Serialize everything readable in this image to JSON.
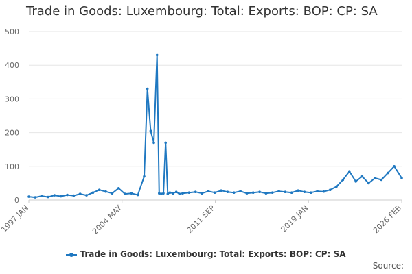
{
  "chart_data": {
    "type": "line",
    "title": "Trade in Goods: Luxembourg: Total: Exports: BOP: CP: SA",
    "xlabel": "",
    "ylabel": "",
    "ylim": [
      0,
      500
    ],
    "yticks": [
      "0",
      "100",
      "200",
      "300",
      "400",
      "500"
    ],
    "xticks": [
      "1997 JAN",
      "2004 MAY",
      "2011 SEP",
      "2019 JAN",
      "2026 FEB"
    ],
    "grid": true,
    "legend_position": "bottom",
    "x_range": [
      "1997-01",
      "2026-02"
    ],
    "series": [
      {
        "name": "Trade in Goods: Luxembourg: Total: Exports: BOP: CP: SA",
        "color": "#1f78c1",
        "x": [
          "1997-01",
          "1997-07",
          "1998-01",
          "1998-07",
          "1999-01",
          "1999-07",
          "2000-01",
          "2000-07",
          "2001-01",
          "2001-07",
          "2002-01",
          "2002-07",
          "2003-01",
          "2003-07",
          "2004-01",
          "2004-07",
          "2005-01",
          "2005-07",
          "2006-01",
          "2006-04",
          "2006-07",
          "2006-10",
          "2007-01",
          "2007-03",
          "2007-05",
          "2007-07",
          "2007-09",
          "2007-11",
          "2008-01",
          "2008-04",
          "2008-07",
          "2008-10",
          "2009-01",
          "2009-07",
          "2010-01",
          "2010-07",
          "2011-01",
          "2011-07",
          "2012-01",
          "2012-07",
          "2013-01",
          "2013-07",
          "2014-01",
          "2014-07",
          "2015-01",
          "2015-07",
          "2016-01",
          "2016-07",
          "2017-01",
          "2017-07",
          "2018-01",
          "2018-07",
          "2019-01",
          "2019-07",
          "2020-01",
          "2020-07",
          "2021-01",
          "2021-07",
          "2022-01",
          "2022-07",
          "2023-01",
          "2023-07",
          "2024-01",
          "2024-07",
          "2025-01",
          "2025-07",
          "2026-02"
        ],
        "values": [
          10,
          8,
          12,
          9,
          14,
          11,
          15,
          13,
          18,
          14,
          22,
          30,
          25,
          20,
          35,
          18,
          20,
          15,
          70,
          330,
          205,
          170,
          430,
          20,
          18,
          20,
          170,
          18,
          22,
          20,
          24,
          18,
          20,
          22,
          24,
          20,
          26,
          22,
          28,
          24,
          22,
          26,
          20,
          22,
          24,
          20,
          22,
          26,
          24,
          22,
          28,
          24,
          22,
          26,
          25,
          30,
          40,
          60,
          85,
          55,
          70,
          50,
          65,
          60,
          80,
          100,
          65
        ]
      }
    ],
    "source_label": "Source:"
  }
}
